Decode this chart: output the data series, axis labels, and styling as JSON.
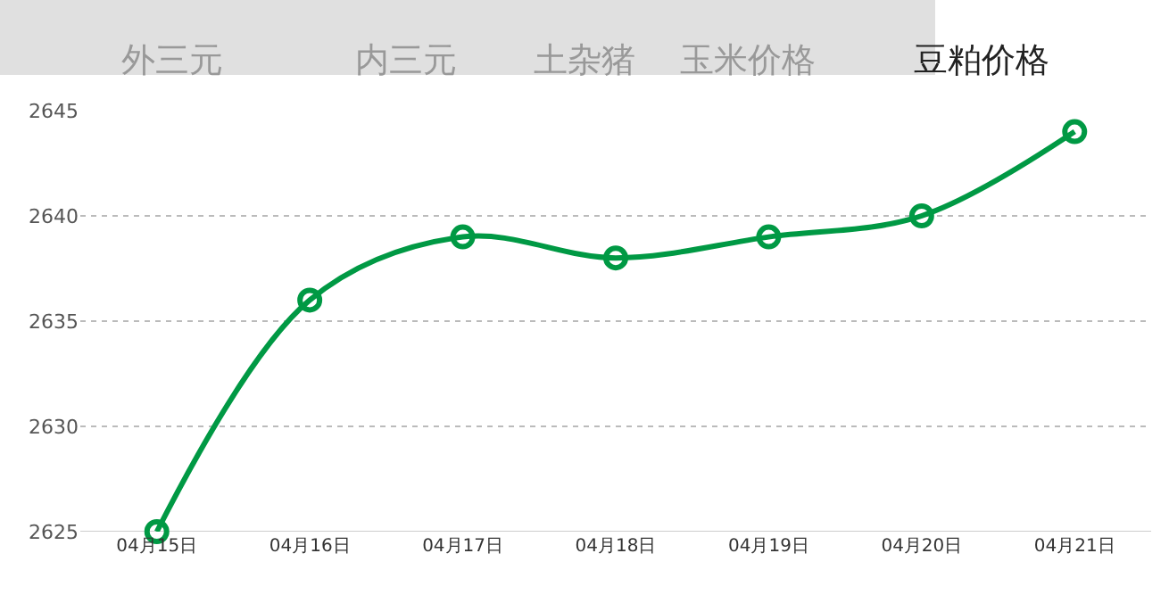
{
  "chart_data": {
    "type": "line",
    "categories": [
      "04月15日",
      "04月16日",
      "04月17日",
      "04月18日",
      "04月19日",
      "04月20日",
      "04月21日"
    ],
    "series": [
      {
        "color": "#009944",
        "values": [
          2625,
          2636,
          2639,
          2638,
          2639,
          2640,
          2644
        ]
      }
    ],
    "ylim": [
      2625,
      2645
    ],
    "yticks": [
      2625,
      2630,
      2635,
      2640,
      2645
    ],
    "grid": "y",
    "marker": "circle",
    "line_style": "solid",
    "legend": false,
    "annotations": [
      "外三元",
      "内三元",
      "土杂猪",
      "玉米价格",
      "豆粕价格"
    ]
  }
}
